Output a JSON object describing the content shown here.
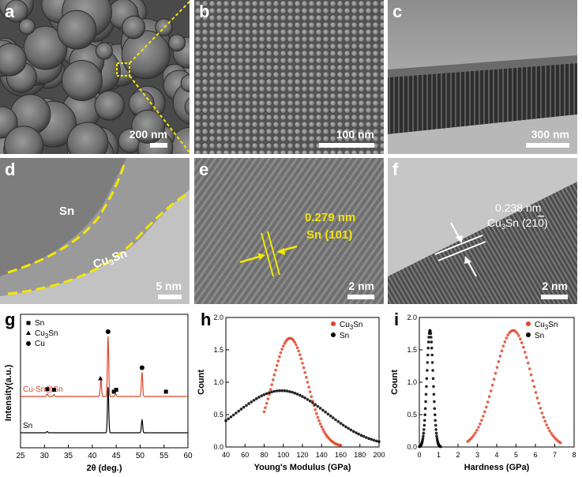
{
  "panels": {
    "a": {
      "label": "a",
      "scale": "200 nm"
    },
    "b": {
      "label": "b",
      "scale": "100 nm"
    },
    "c": {
      "label": "c",
      "scale": "300 nm"
    },
    "d": {
      "label": "d",
      "scale": "5 nm",
      "phase1": "Sn",
      "phase2": "Cu3Sn"
    },
    "e": {
      "label": "e",
      "scale": "2 nm",
      "spacing": "0.279 nm",
      "plane": "Sn (101)"
    },
    "f": {
      "label": "f",
      "scale": "2 nm",
      "spacing": "0.238 nm",
      "plane": "Cu3Sn (210)"
    },
    "g": {
      "label": "g"
    },
    "h": {
      "label": "h"
    },
    "i": {
      "label": "i"
    }
  },
  "chart_data": [
    {
      "id": "g",
      "type": "line",
      "xlabel": "2θ (deg.)",
      "ylabel": "Intensity(a.u.)",
      "xlim": [
        25,
        60
      ],
      "xticks": [
        25,
        30,
        35,
        40,
        45,
        50,
        55,
        60
      ],
      "legend": [
        {
          "marker": "square",
          "label": "Sn"
        },
        {
          "marker": "club",
          "label": "Cu3Sn"
        },
        {
          "marker": "circle",
          "label": "Cu"
        }
      ],
      "legend_position": "top-left",
      "series": [
        {
          "name": "Cu-Sn@Sn",
          "color": "#e0452a",
          "peaks": [
            [
              30.6,
              0.04
            ],
            [
              32.0,
              0.03
            ],
            [
              41.8,
              0.28
            ],
            [
              43.3,
              0.95
            ],
            [
              44.9,
              0.04
            ],
            [
              50.4,
              0.38
            ]
          ]
        },
        {
          "name": "Sn",
          "color": "#000000",
          "peaks": [
            [
              30.6,
              0.02
            ],
            [
              43.3,
              0.72
            ],
            [
              50.4,
              0.2
            ]
          ]
        }
      ],
      "peak_markers": [
        {
          "x": 30.6,
          "marker": "square"
        },
        {
          "x": 32.0,
          "marker": "square"
        },
        {
          "x": 41.7,
          "marker": "club"
        },
        {
          "x": 43.3,
          "marker": "circle"
        },
        {
          "x": 44.5,
          "marker": "square"
        },
        {
          "x": 45.0,
          "marker": "square"
        },
        {
          "x": 50.4,
          "marker": "circle"
        },
        {
          "x": 55.4,
          "marker": "square"
        }
      ]
    },
    {
      "id": "h",
      "type": "scatter",
      "xlabel": "Young's Modulus (GPa)",
      "ylabel": "Count",
      "xlim": [
        40,
        200
      ],
      "ylim": [
        0,
        2.0
      ],
      "xticks": [
        40,
        60,
        80,
        100,
        120,
        140,
        160,
        180,
        200
      ],
      "yticks": [
        0.0,
        0.5,
        1.0,
        1.5,
        2.0
      ],
      "legend_position": "top-right",
      "series": [
        {
          "name": "Cu3Sn",
          "color": "#e0452a",
          "mean": 107,
          "sd": 18,
          "peak": 1.68,
          "x_range": [
            80,
            160
          ]
        },
        {
          "name": "Sn",
          "color": "#000000",
          "mean": 98,
          "sd": 47,
          "peak": 0.87,
          "x_range": [
            40,
            200
          ]
        }
      ]
    },
    {
      "id": "i",
      "type": "scatter",
      "xlabel": "Hardness (GPa)",
      "ylabel": "Count",
      "xlim": [
        0,
        8
      ],
      "ylim": [
        0,
        2.0
      ],
      "xticks": [
        0,
        1,
        2,
        3,
        4,
        5,
        6,
        7,
        8
      ],
      "yticks": [
        0.0,
        0.5,
        1.0,
        1.5,
        2.0
      ],
      "legend_position": "top-right",
      "series": [
        {
          "name": "Cu3Sn",
          "color": "#e0452a",
          "mean": 4.85,
          "sd": 0.95,
          "peak": 1.8,
          "x_range": [
            2.5,
            7.3
          ]
        },
        {
          "name": "Sn",
          "color": "#000000",
          "mean": 0.55,
          "sd": 0.16,
          "peak": 1.8,
          "x_range": [
            0.0,
            1.1
          ]
        }
      ]
    }
  ]
}
